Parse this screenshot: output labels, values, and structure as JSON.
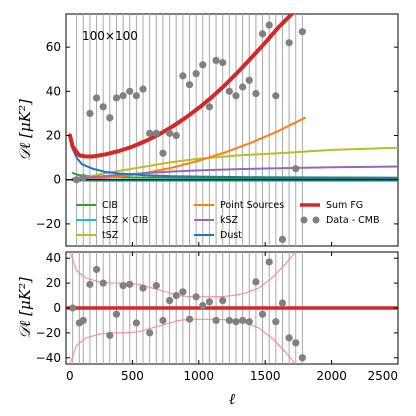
{
  "chart_data": [
    {
      "type": "line",
      "annotation": "100×100",
      "ylabel": "𝒟ℓ  [μK²]",
      "xlim": [
        0,
        2500
      ],
      "ylim": [
        -30,
        75
      ],
      "yticks": [
        -20,
        0,
        20,
        40,
        60
      ],
      "grid": false,
      "legend_position": "lower-center",
      "series": [
        {
          "name": "CIB",
          "color": "#2ca02c",
          "x": [
            50,
            100,
            200,
            300,
            500,
            800,
            1000,
            1500,
            2000,
            2500
          ],
          "y": [
            3,
            2,
            1.5,
            1.2,
            1.0,
            0.9,
            0.8,
            0.7,
            0.6,
            0.5
          ]
        },
        {
          "name": "tSZ × CIB",
          "color": "#17becf",
          "x": [
            50,
            100,
            200,
            300,
            500,
            800,
            1000,
            1500,
            2000,
            2500
          ],
          "y": [
            -0.3,
            -0.4,
            -0.5,
            -0.5,
            -0.5,
            -0.5,
            -0.5,
            -0.5,
            -0.5,
            -0.5
          ]
        },
        {
          "name": "tSZ",
          "color": "#bcbd22",
          "x": [
            50,
            100,
            200,
            300,
            400,
            600,
            800,
            1000,
            1300,
            1600,
            2000,
            2500
          ],
          "y": [
            0.3,
            0.8,
            1.8,
            3,
            4,
            6,
            8,
            9.5,
            11,
            12,
            13.5,
            14.5
          ]
        },
        {
          "name": "Point Sources",
          "color": "#ff7f0e",
          "x": [
            50,
            200,
            400,
            600,
            800,
            1000,
            1200,
            1400,
            1600,
            1800
          ],
          "y": [
            0,
            0.3,
            1.4,
            3.1,
            5.5,
            8.6,
            12.4,
            16.9,
            22.1,
            28
          ]
        },
        {
          "name": "kSZ",
          "color": "#9467bd",
          "x": [
            50,
            200,
            400,
            600,
            800,
            1000,
            1300,
            1600,
            2000,
            2500
          ],
          "y": [
            0.5,
            1.2,
            2.2,
            3,
            3.7,
            4.2,
            4.8,
            5.2,
            5.6,
            6
          ]
        },
        {
          "name": "Dust",
          "color": "#1f77b4",
          "x": [
            30,
            50,
            80,
            120,
            200,
            300,
            400,
            600,
            800,
            1000,
            1500,
            2000,
            2500
          ],
          "y": [
            20,
            14,
            10,
            7,
            5,
            3.5,
            2.8,
            2,
            1.6,
            1.4,
            1.1,
            1,
            0.9
          ]
        },
        {
          "name": "Sum FG",
          "color": "#d62728",
          "x": [
            30,
            50,
            100,
            150,
            200,
            300,
            400,
            500,
            600,
            700,
            800,
            900,
            1000,
            1100,
            1200,
            1300,
            1400,
            1500,
            1600,
            1700,
            1800
          ],
          "y": [
            20,
            15,
            11,
            10.5,
            10.5,
            11.5,
            13,
            15,
            17.5,
            20.5,
            24,
            28,
            32.5,
            37.5,
            43,
            49,
            55.5,
            62,
            69,
            75,
            81
          ]
        }
      ],
      "scatter": {
        "name": "Data - CMB",
        "color": "#808080",
        "x": [
          80,
          130,
          180,
          230,
          280,
          330,
          380,
          430,
          480,
          530,
          580,
          630,
          680,
          730,
          780,
          830,
          880,
          930,
          980,
          1030,
          1080,
          1130,
          1180,
          1230,
          1280,
          1330,
          1380,
          1430,
          1480,
          1530,
          1580,
          1630,
          1680,
          1730,
          1780
        ],
        "y": [
          0,
          1,
          30,
          37,
          33,
          28,
          37,
          38,
          40,
          38,
          41,
          21,
          21,
          12,
          21,
          20,
          47,
          43,
          48,
          52,
          33,
          54,
          53,
          40,
          38,
          42,
          45,
          39,
          66,
          70,
          38,
          -27,
          62,
          5,
          67
        ]
      }
    },
    {
      "type": "scatter",
      "ylabel": "𝒟ℓ  [μK²]",
      "xlabel": "ℓ",
      "xlim": [
        0,
        2500
      ],
      "ylim": [
        -45,
        45
      ],
      "xticks": [
        0,
        500,
        1000,
        1500,
        2000,
        2500
      ],
      "yticks": [
        -40,
        -20,
        0,
        20,
        40
      ],
      "zero_line_color": "#d62728",
      "envelope_color": "#ff8080",
      "envelope": {
        "x": [
          30,
          80,
          150,
          250,
          350,
          450,
          550,
          650,
          750,
          850,
          950,
          1050,
          1150,
          1250,
          1350,
          1450,
          1550,
          1650,
          1750,
          1850,
          1950
        ],
        "upper": [
          45,
          30,
          24,
          21,
          20,
          20,
          19,
          16,
          13,
          10,
          9,
          9,
          9,
          10,
          12,
          16,
          24,
          35,
          48,
          60,
          75
        ],
        "lower": [
          -45,
          -30,
          -24,
          -21,
          -20,
          -20,
          -19,
          -16,
          -13,
          -10,
          -9,
          -9,
          -9,
          -10,
          -12,
          -16,
          -24,
          -35,
          -48,
          -60,
          -75
        ]
      },
      "scatter": {
        "color": "#808080",
        "x": [
          50,
          100,
          130,
          180,
          230,
          280,
          330,
          380,
          430,
          480,
          530,
          580,
          630,
          680,
          730,
          780,
          830,
          880,
          930,
          980,
          1030,
          1080,
          1130,
          1180,
          1230,
          1280,
          1330,
          1380,
          1430,
          1480,
          1530,
          1580,
          1630,
          1680,
          1730,
          1780
        ],
        "y": [
          0,
          -12,
          -10,
          19,
          31,
          20,
          -22,
          -5,
          18,
          19,
          -12,
          16,
          -20,
          18,
          -10,
          6,
          10,
          13,
          -9,
          9,
          2,
          5,
          -10,
          6,
          -10,
          -11,
          -10,
          -11,
          21,
          -5,
          37,
          -11,
          4,
          -24,
          -28,
          -40
        ]
      }
    }
  ]
}
